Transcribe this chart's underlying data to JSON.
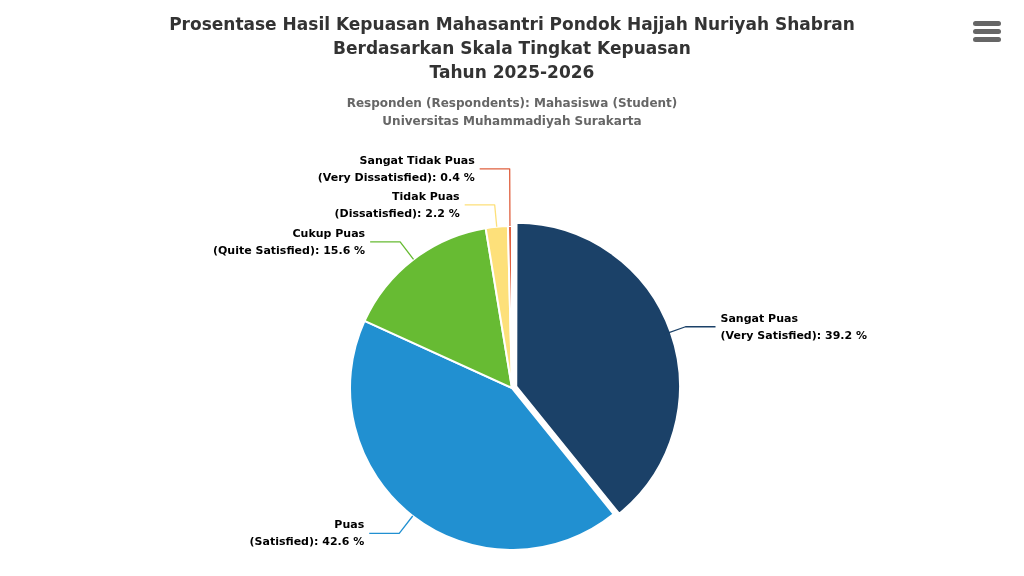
{
  "chart_data": {
    "type": "pie",
    "title": "Prosentase Hasil Kepuasan Mahasantri Pondok Hajjah Nuriyah Shabran\nBerdasarkan Skala Tingkat Kepuasan\nTahun 2025-2026",
    "subtitle": "Responden (Respondents): Mahasiswa (Student)\nUniversitas Muhammadiyah Surakarta",
    "categories": [
      "Sangat Puas (Very Satisfied)",
      "Puas (Satisfied)",
      "Cukup Puas (Quite Satisfied)",
      "Tidak Puas (Dissatisfied)",
      "Sangat Tidak Puas (Very Dissatisfied)"
    ],
    "values": [
      39.2,
      42.6,
      15.6,
      2.2,
      0.4
    ],
    "value_labels": [
      "39.2 %",
      "42.6 %",
      "15.6 %",
      "2.2 %",
      "0.4 %"
    ],
    "colors": [
      "#1b4168",
      "#2190d1",
      "#67bb33",
      "#fde07a",
      "#e0603f"
    ],
    "legend": false
  }
}
